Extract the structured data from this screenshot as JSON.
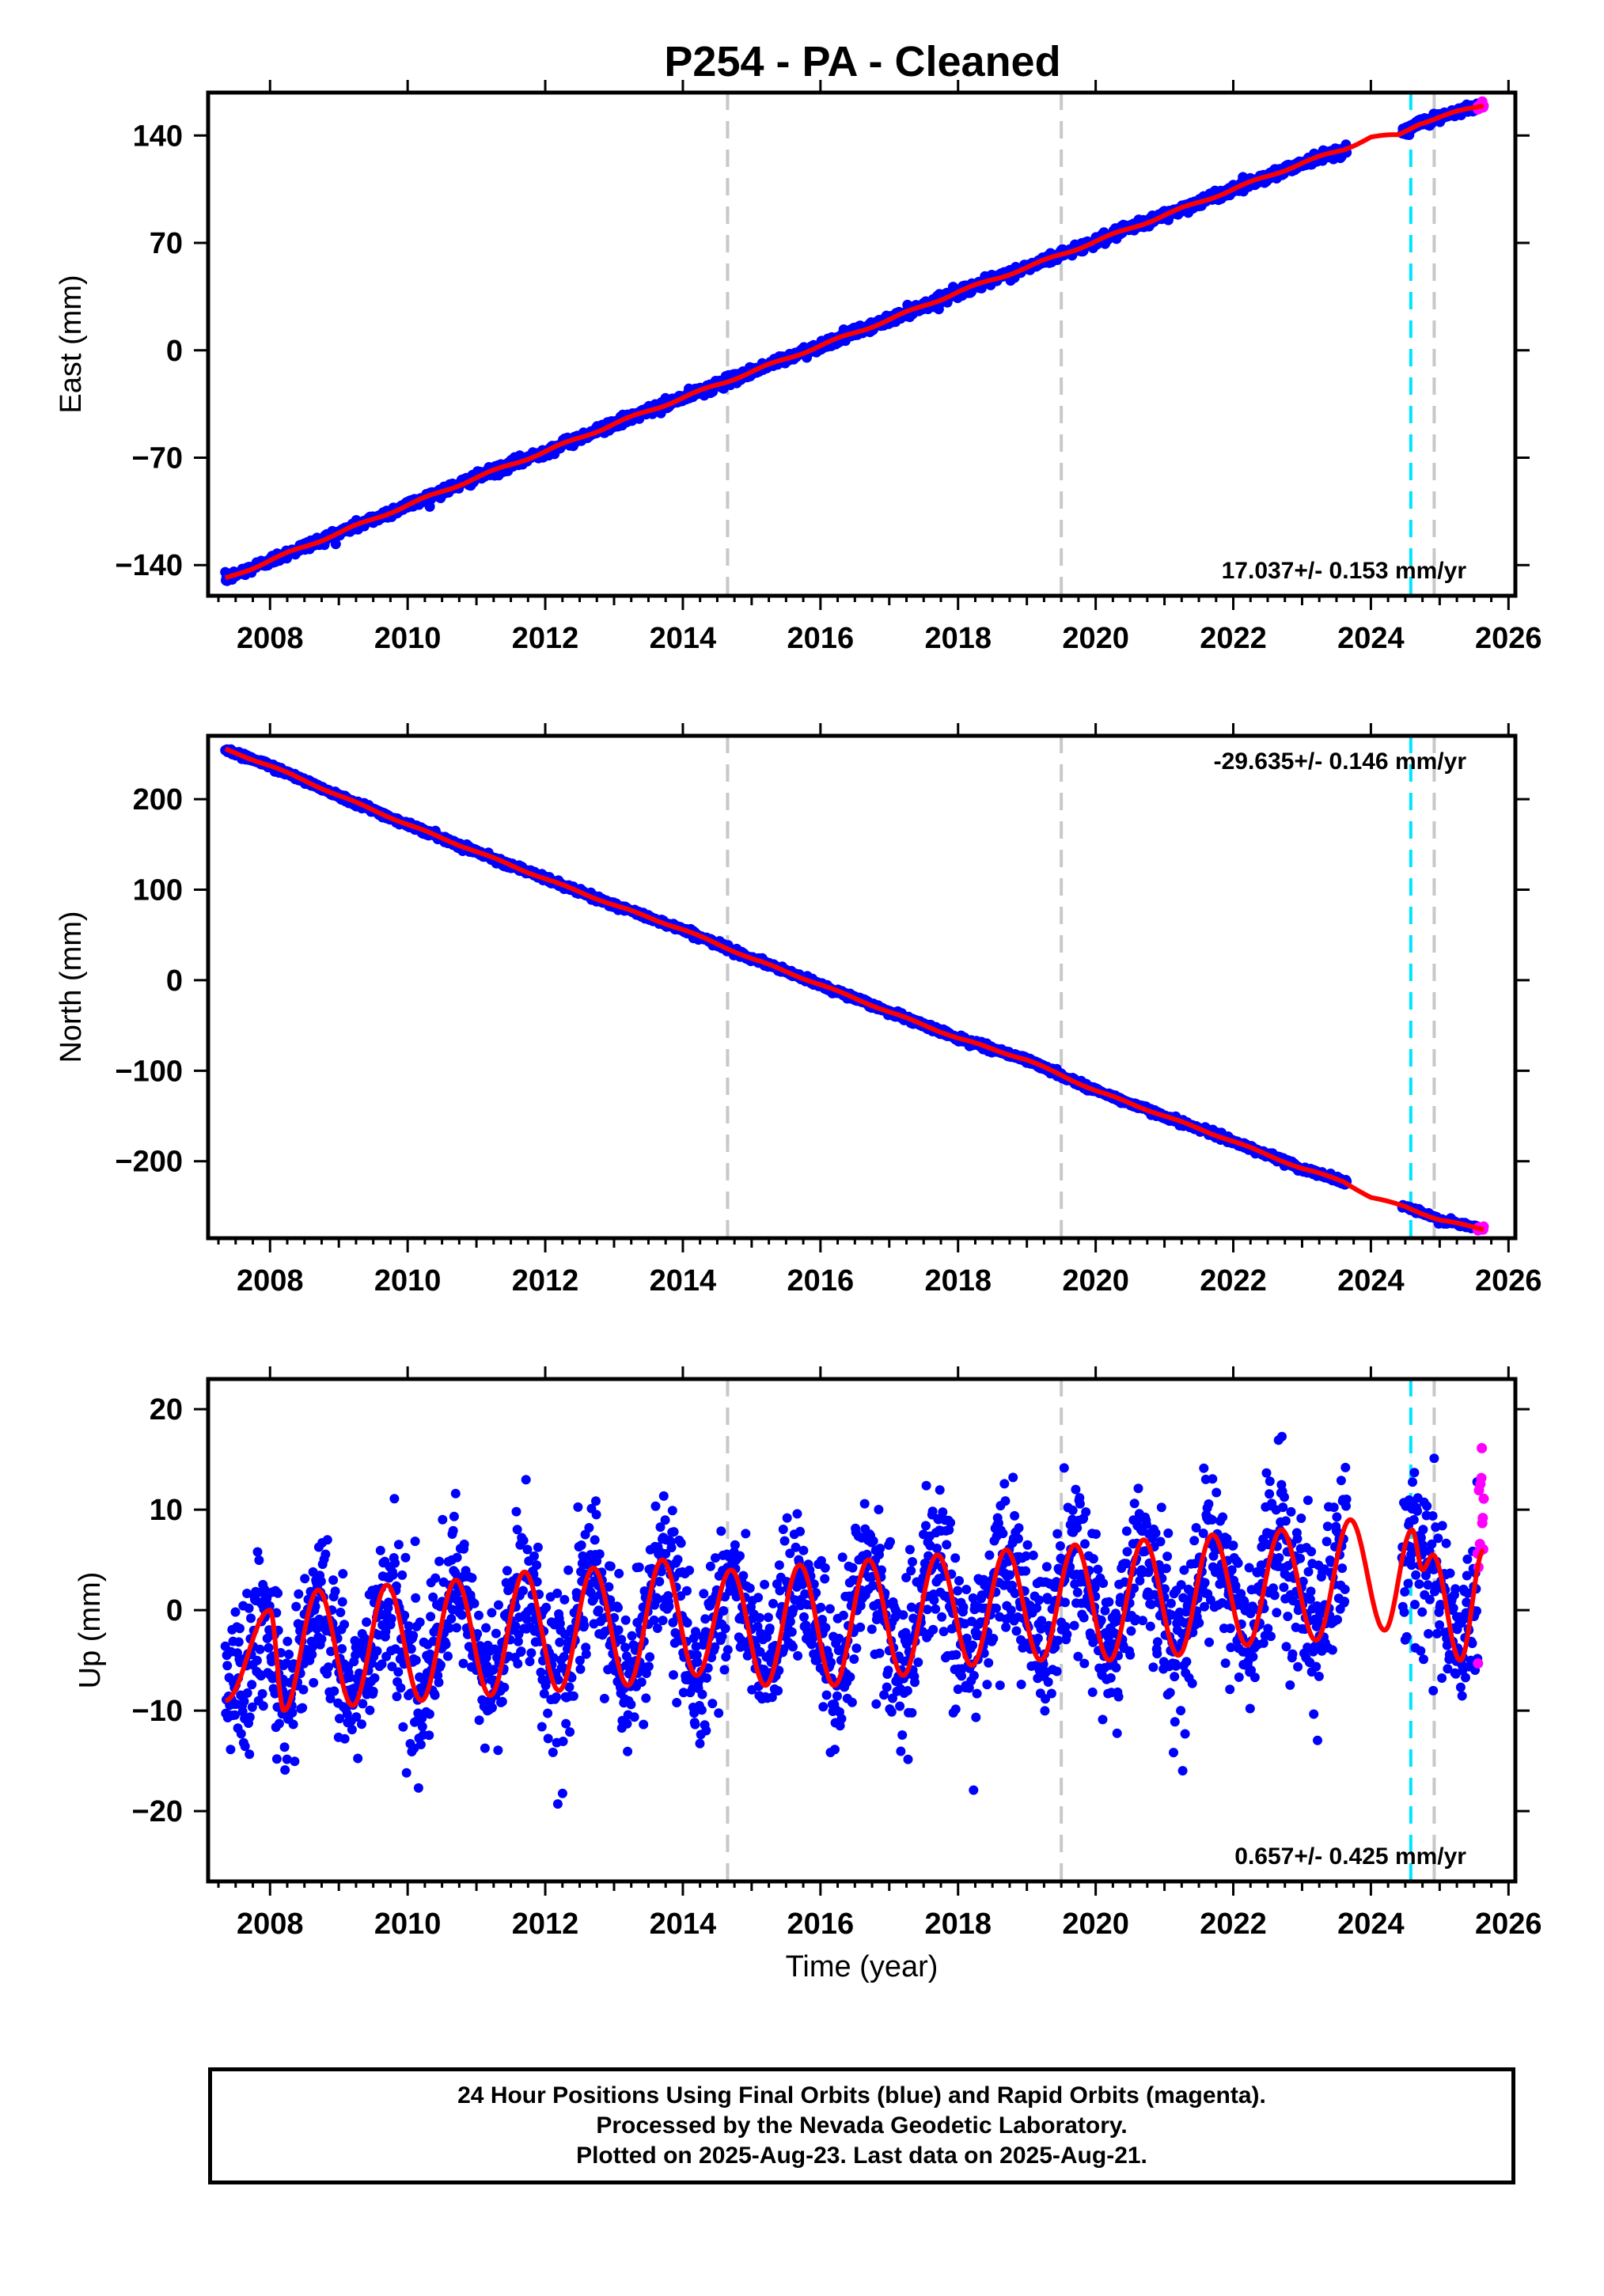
{
  "title": "P254  - PA - Cleaned",
  "colors": {
    "final_orbits": "#0000ff",
    "rapid_orbits": "#ff00ff",
    "model_fit": "#ff0000",
    "equipment_change": "#c8c8c8",
    "event_marker": "#00e5ff"
  },
  "chart_data": [
    {
      "type": "scatter",
      "ylabel": "East (mm)",
      "xlabel": "",
      "xlim": [
        2007.1,
        2026.1
      ],
      "ylim": [
        -160,
        168
      ],
      "xticks": [
        2008,
        2010,
        2012,
        2014,
        2016,
        2018,
        2020,
        2022,
        2024,
        2026
      ],
      "yticks": [
        -140,
        -70,
        0,
        70,
        140
      ],
      "grid": false,
      "rate_label": "17.037+/- 0.153 mm/yr",
      "rate_position": "bottom-right",
      "gray_dashed_lines_x": [
        2014.65,
        2019.5,
        2024.92
      ],
      "cyan_dashed_lines_x": [
        2024.58
      ],
      "final_orbits_range": [
        2007.35,
        2025.55
      ],
      "rapid_orbits_range": [
        2025.55,
        2025.64
      ],
      "model_fit_points": [
        [
          2007.35,
          -149
        ],
        [
          2008.0,
          -137
        ],
        [
          2009.0,
          -119
        ],
        [
          2010.0,
          -101
        ],
        [
          2011.0,
          -83
        ],
        [
          2012.0,
          -66
        ],
        [
          2013.0,
          -48
        ],
        [
          2014.0,
          -31
        ],
        [
          2015.0,
          -14
        ],
        [
          2016.0,
          3
        ],
        [
          2017.0,
          20
        ],
        [
          2018.0,
          38
        ],
        [
          2019.0,
          54
        ],
        [
          2020.0,
          71
        ],
        [
          2021.0,
          88
        ],
        [
          2022.0,
          105
        ],
        [
          2023.0,
          122
        ],
        [
          2023.6,
          131
        ],
        [
          2024.0,
          139
        ],
        [
          2024.4,
          140
        ],
        [
          2024.7,
          148
        ],
        [
          2025.0,
          152
        ],
        [
          2025.64,
          160
        ]
      ]
    },
    {
      "type": "scatter",
      "ylabel": "North (mm)",
      "xlabel": "",
      "xlim": [
        2007.1,
        2026.1
      ],
      "ylim": [
        -285,
        270
      ],
      "xticks": [
        2008,
        2010,
        2012,
        2014,
        2016,
        2018,
        2020,
        2022,
        2024,
        2026
      ],
      "yticks": [
        -200,
        -100,
        0,
        100,
        200
      ],
      "grid": false,
      "rate_label": "-29.635+/- 0.146 mm/yr",
      "rate_position": "top-right",
      "gray_dashed_lines_x": [
        2014.65,
        2019.5,
        2024.92
      ],
      "cyan_dashed_lines_x": [
        2024.58
      ],
      "final_orbits_range": [
        2007.35,
        2025.55
      ],
      "rapid_orbits_range": [
        2025.55,
        2025.64
      ],
      "model_fit_points": [
        [
          2007.35,
          255
        ],
        [
          2008.0,
          237
        ],
        [
          2009.0,
          204
        ],
        [
          2010.0,
          172
        ],
        [
          2011.0,
          142
        ],
        [
          2012.0,
          112
        ],
        [
          2013.0,
          83
        ],
        [
          2014.0,
          56
        ],
        [
          2015.0,
          24
        ],
        [
          2016.0,
          -5
        ],
        [
          2017.0,
          -35
        ],
        [
          2018.0,
          -64
        ],
        [
          2019.0,
          -88
        ],
        [
          2020.0,
          -122
        ],
        [
          2021.0,
          -150
        ],
        [
          2022.0,
          -178
        ],
        [
          2023.0,
          -208
        ],
        [
          2023.6,
          -222
        ],
        [
          2024.0,
          -240
        ],
        [
          2024.5,
          -250
        ],
        [
          2025.0,
          -265
        ],
        [
          2025.64,
          -275
        ]
      ]
    },
    {
      "type": "scatter",
      "ylabel": "Up (mm)",
      "xlabel": "Time (year)",
      "xlim": [
        2007.1,
        2026.1
      ],
      "ylim": [
        -27,
        23
      ],
      "xticks": [
        2008,
        2010,
        2012,
        2014,
        2016,
        2018,
        2020,
        2022,
        2024,
        2026
      ],
      "yticks": [
        -20,
        -10,
        0,
        10,
        20
      ],
      "grid": false,
      "rate_label": "0.657+/- 0.425 mm/yr",
      "rate_position": "bottom-right",
      "gray_dashed_lines_x": [
        2014.65,
        2019.5,
        2024.92
      ],
      "cyan_dashed_lines_x": [
        2024.58
      ],
      "final_orbits_range": [
        2007.35,
        2025.55
      ],
      "rapid_orbits_range": [
        2025.55,
        2025.64
      ],
      "seasonal_amplitude_mm": 6,
      "seasonal_peak_phase_year": 0.7,
      "model_fit_points": [
        [
          2007.35,
          -9
        ],
        [
          2008.0,
          0
        ],
        [
          2008.2,
          -10
        ],
        [
          2008.7,
          2
        ],
        [
          2009.2,
          -9.5
        ],
        [
          2009.7,
          2.5
        ],
        [
          2010.2,
          -9
        ],
        [
          2010.7,
          3
        ],
        [
          2011.2,
          -8.5
        ],
        [
          2011.7,
          3.8
        ],
        [
          2012.2,
          -8
        ],
        [
          2012.7,
          4.2
        ],
        [
          2013.2,
          -7.5
        ],
        [
          2013.7,
          5
        ],
        [
          2014.2,
          -6.5
        ],
        [
          2014.7,
          4
        ],
        [
          2015.2,
          -7.5
        ],
        [
          2015.7,
          4.5
        ],
        [
          2016.2,
          -7.5
        ],
        [
          2016.7,
          5
        ],
        [
          2017.2,
          -6.5
        ],
        [
          2017.7,
          5.5
        ],
        [
          2018.2,
          -5.5
        ],
        [
          2018.7,
          6
        ],
        [
          2019.2,
          -5
        ],
        [
          2019.7,
          6.5
        ],
        [
          2020.2,
          -5
        ],
        [
          2020.7,
          7
        ],
        [
          2021.2,
          -4.5
        ],
        [
          2021.7,
          7.5
        ],
        [
          2022.2,
          -3.5
        ],
        [
          2022.7,
          8
        ],
        [
          2023.2,
          -3
        ],
        [
          2023.7,
          9
        ],
        [
          2024.2,
          -2
        ],
        [
          2024.6,
          8
        ],
        [
          2024.75,
          4
        ],
        [
          2024.9,
          5.5
        ],
        [
          2025.3,
          -5
        ],
        [
          2025.64,
          6
        ]
      ]
    }
  ],
  "footer": {
    "line1": "24 Hour Positions Using Final Orbits (blue) and Rapid Orbits (magenta).",
    "line2": "Processed by the Nevada Geodetic Laboratory.",
    "line3": "Plotted on 2025-Aug-23. Last data on 2025-Aug-21."
  }
}
